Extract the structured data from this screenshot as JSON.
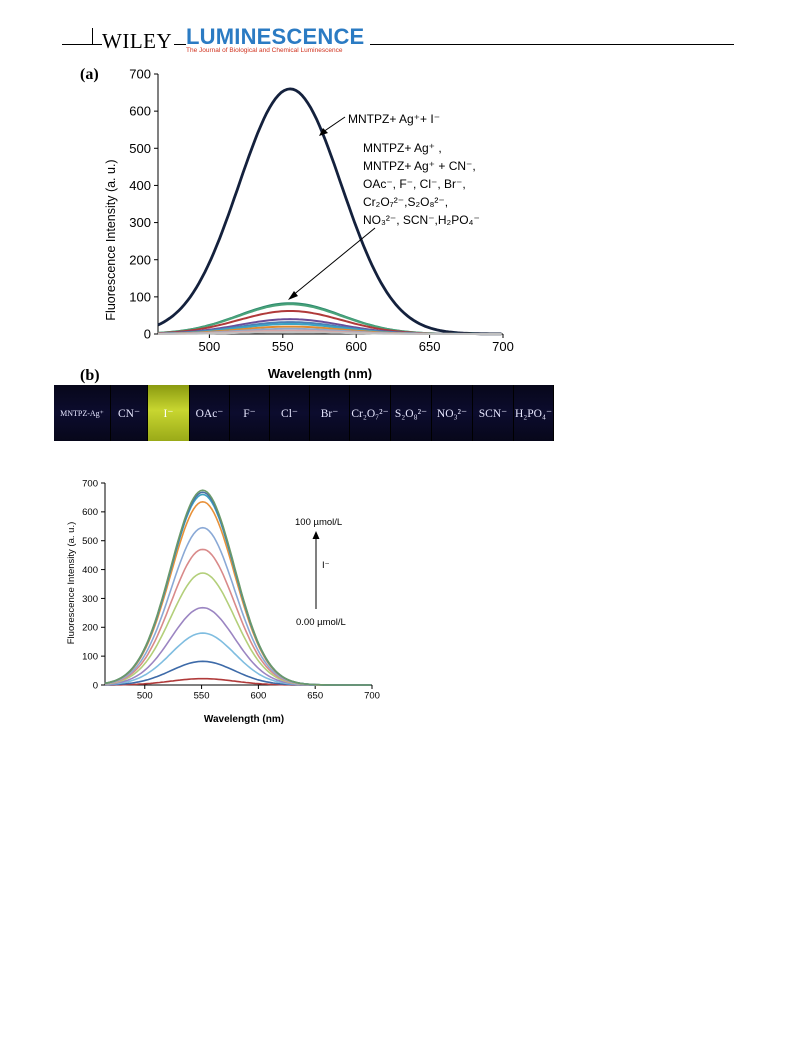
{
  "header": {
    "brand": "WILEY",
    "journal": "LUMINESCENCE",
    "journal_subtitle": "The Journal of Biological and Chemical Luminescence"
  },
  "panel_a_label": "(a)",
  "panel_b_label": "(b)",
  "annotations_a": {
    "top": "MNTPZ+ Ag⁺+ I⁻",
    "line1": "MNTPZ+ Ag⁺ ,",
    "line2": "MNTPZ+ Ag⁺ + CN⁻,",
    "line3": "OAc⁻, F⁻, Cl⁻, Br⁻,",
    "line4": "Cr₂O₇²⁻,S₂O₈²⁻,",
    "line5": "NO₃²⁻, SCN⁻,H₂PO₄⁻"
  },
  "annotations_c": {
    "top": "100 µmol/L",
    "mid": "I⁻",
    "bottom": "0.00 µmol/L"
  },
  "vials": [
    "MNTPZ-Ag⁺",
    "CN⁻",
    "I⁻",
    "OAc⁻",
    "F⁻",
    "Cl⁻",
    "Br⁻",
    "Cr₂O₇²⁻",
    "S₂O₈²⁻",
    "NO₃²⁻",
    "SCN⁻",
    "H₂PO₄⁻"
  ],
  "lit_vial": "I⁻",
  "chart_data": [
    {
      "type": "line",
      "xlabel": "Wavelength (nm)",
      "ylabel": "Fluorescence Intensity (a. u.)",
      "xlim": [
        465,
        700
      ],
      "ylim": [
        0,
        700
      ],
      "xticks": [
        500,
        550,
        600,
        650,
        700
      ],
      "yticks": [
        0,
        100,
        200,
        300,
        400,
        500,
        600,
        700
      ],
      "grid": false,
      "peak_x": 555,
      "width_sigma": 35,
      "series": [
        {
          "peak": 660,
          "color": "#14213d"
        },
        {
          "peak": 83,
          "color": "#2e8b6e"
        },
        {
          "peak": 80,
          "color": "#4aa37a"
        },
        {
          "peak": 62,
          "color": "#b03a3a"
        },
        {
          "peak": 40,
          "color": "#6a4d99"
        },
        {
          "peak": 32,
          "color": "#4a7fb5"
        },
        {
          "peak": 27,
          "color": "#3ba3c4"
        },
        {
          "peak": 20,
          "color": "#e08a2e"
        },
        {
          "peak": 14,
          "color": "#8fa7c9"
        },
        {
          "peak": 9,
          "color": "#d9a3a3"
        },
        {
          "peak": 5,
          "color": "#c0c0c0"
        }
      ]
    },
    {
      "type": "line",
      "xlabel": "Wavelength (nm)",
      "ylabel": "Fluorescence Intensity (a. u.)",
      "xlim": [
        465,
        700
      ],
      "ylim": [
        0,
        700
      ],
      "xticks": [
        500,
        550,
        600,
        650,
        700
      ],
      "yticks": [
        0,
        100,
        200,
        300,
        400,
        500,
        600,
        700
      ],
      "grid": false,
      "peak_x": 551,
      "width_sigma": 28,
      "series": [
        {
          "peak": 22,
          "color": "#b03a3a"
        },
        {
          "peak": 82,
          "color": "#3d6aa8"
        },
        {
          "peak": 180,
          "color": "#7fbde0"
        },
        {
          "peak": 268,
          "color": "#9b85c2"
        },
        {
          "peak": 388,
          "color": "#b3cf7a"
        },
        {
          "peak": 470,
          "color": "#d98a8a"
        },
        {
          "peak": 545,
          "color": "#8aa9d6"
        },
        {
          "peak": 635,
          "color": "#e8913a"
        },
        {
          "peak": 660,
          "color": "#3aa0c0"
        },
        {
          "peak": 668,
          "color": "#4a6fa5"
        },
        {
          "peak": 675,
          "color": "#6a9a6a"
        }
      ]
    }
  ]
}
